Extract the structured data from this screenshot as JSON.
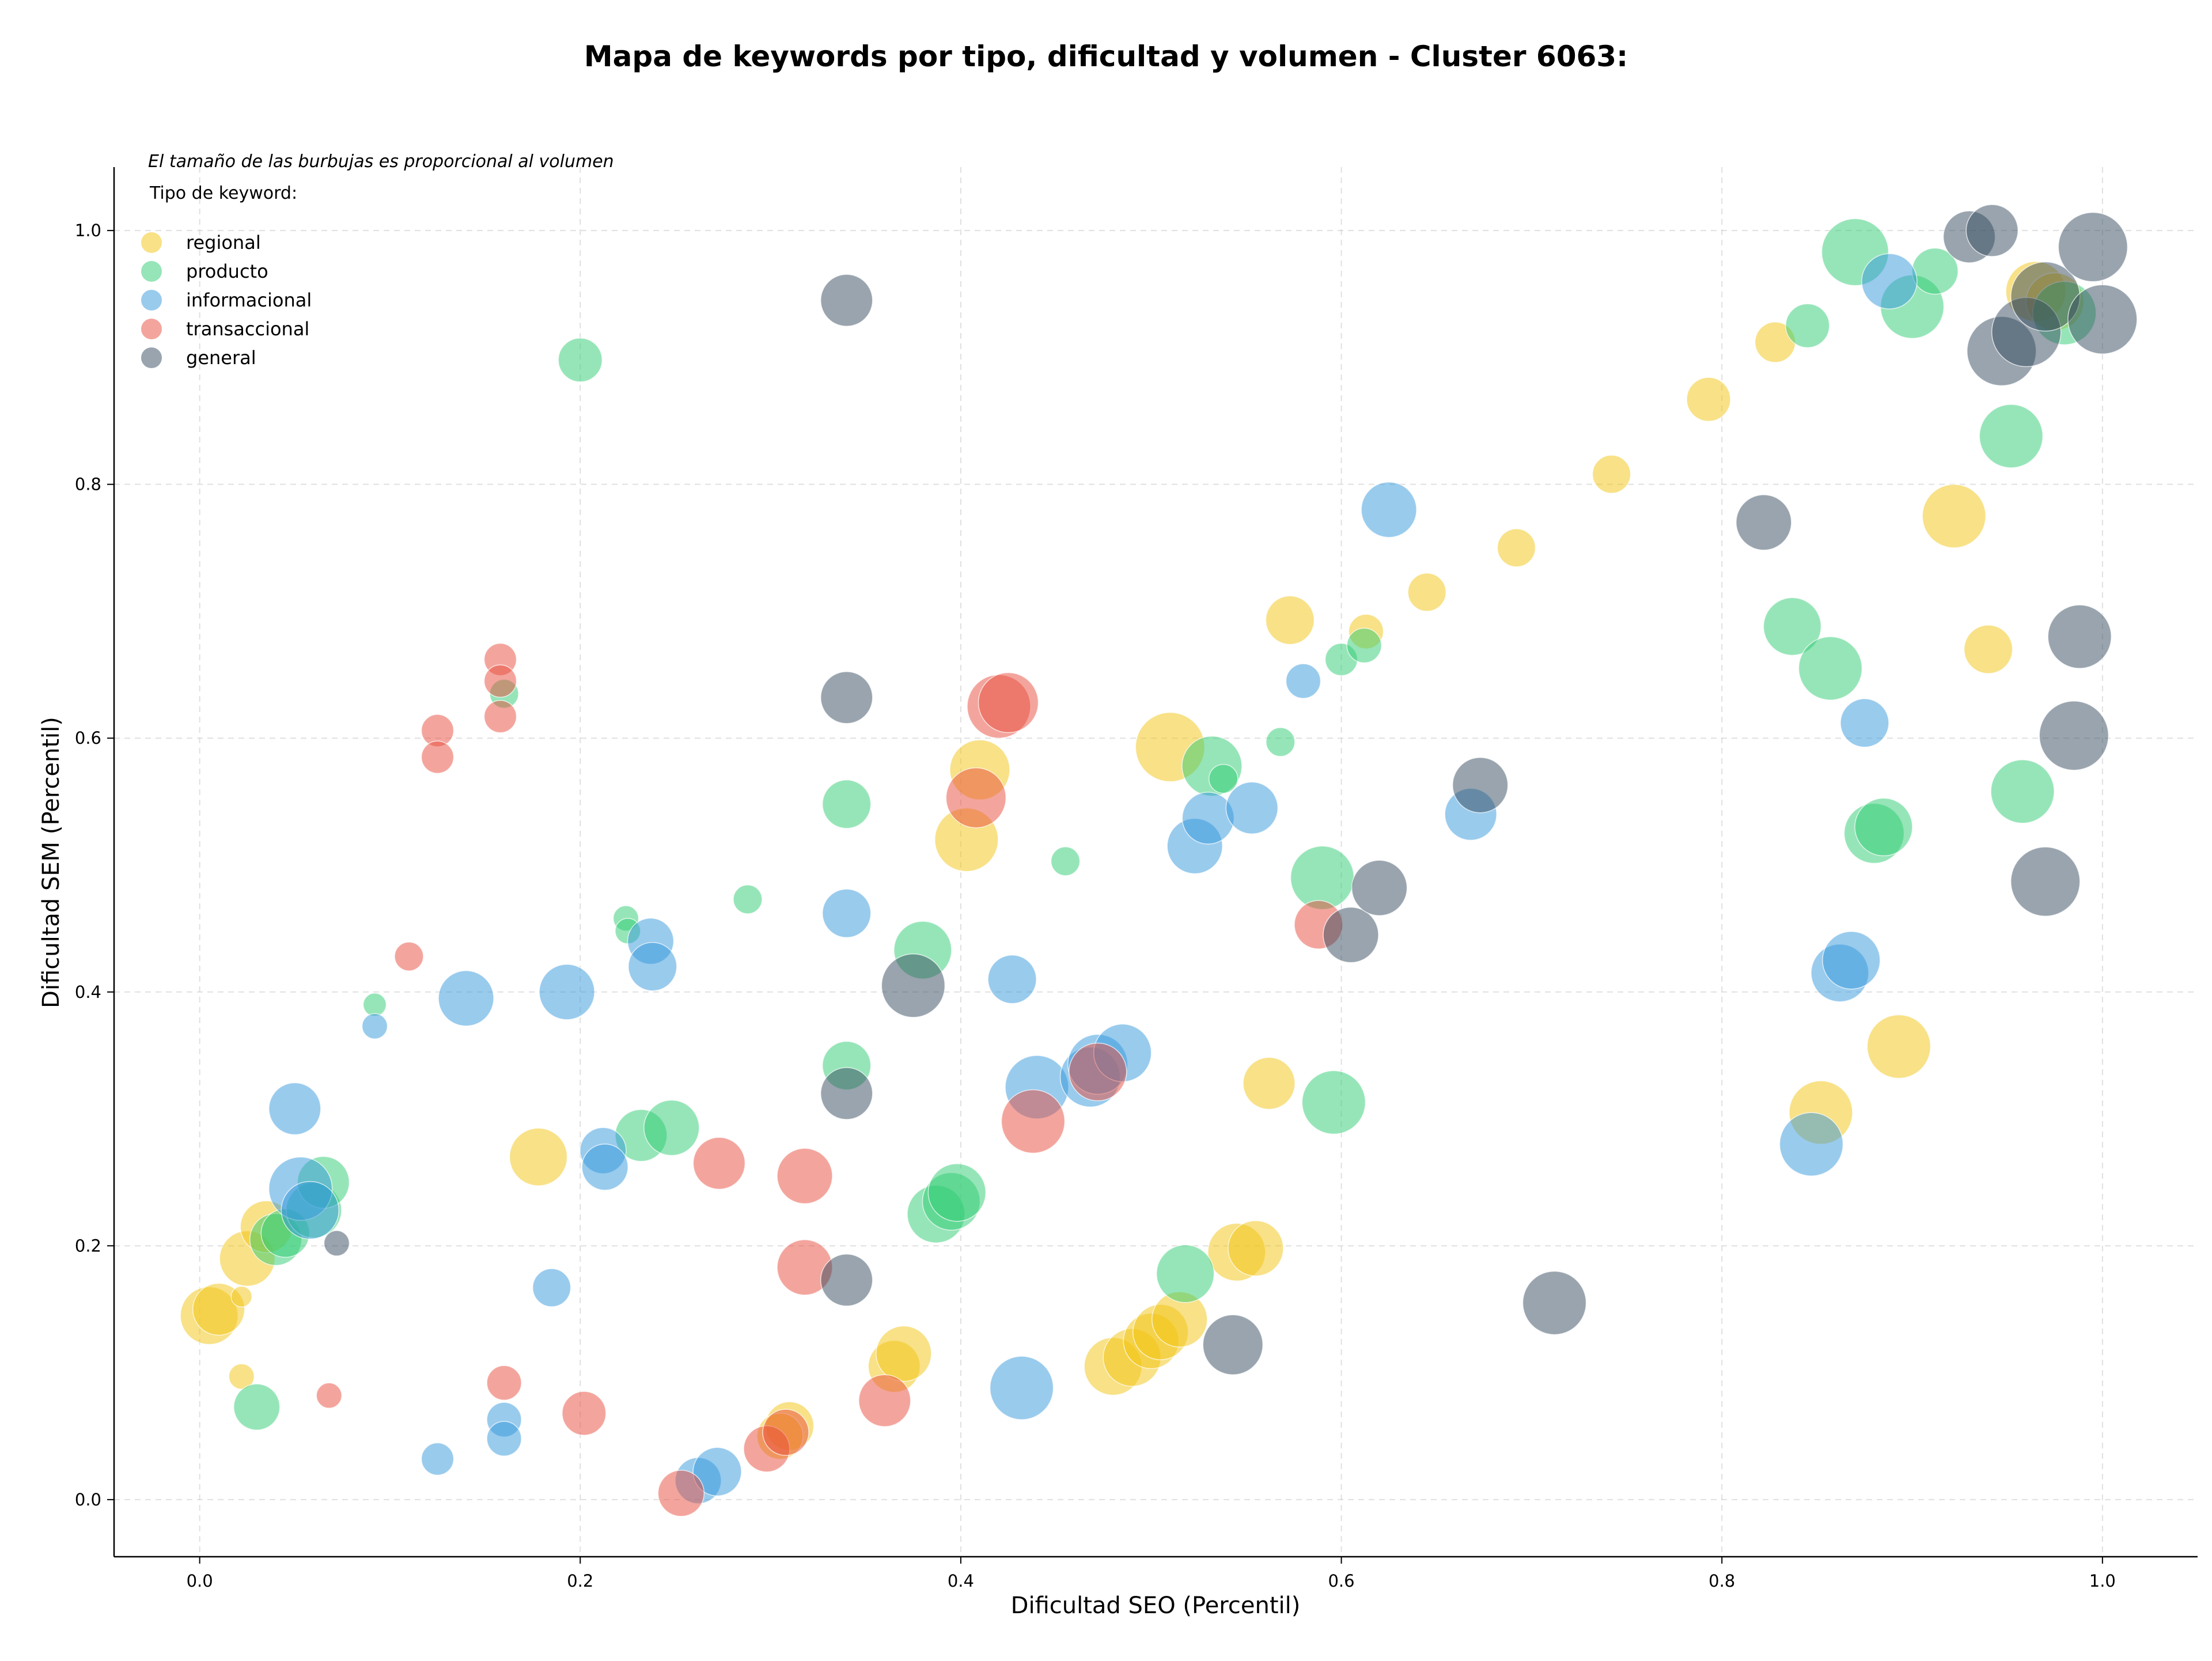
{
  "chart_data": {
    "type": "scatter",
    "title": "Mapa de keywords por tipo, dificultad y volumen - Cluster 6063:",
    "xlabel": "Dificultad SEO (Percentil)",
    "ylabel": "Dificultad SEM (Percentil)",
    "xlim": [
      -0.045,
      1.05
    ],
    "ylim": [
      -0.045,
      1.05
    ],
    "x_ticks": [
      "0.0",
      "0.2",
      "0.4",
      "0.6",
      "0.8",
      "1.0"
    ],
    "y_ticks": [
      "0.0",
      "0.2",
      "0.4",
      "0.6",
      "0.8",
      "1.0"
    ],
    "grid": true,
    "size_note": "El tamaño de las burbujas es proporcional al volumen",
    "legend_title": "Tipo de keyword:",
    "legend_position": "top-left",
    "series": [
      {
        "name": "regional",
        "color": "#f1c40f",
        "points": [
          [
            0.005,
            0.145,
            50
          ],
          [
            0.01,
            0.15,
            45
          ],
          [
            0.022,
            0.16,
            18
          ],
          [
            0.022,
            0.097,
            22
          ],
          [
            0.025,
            0.19,
            48
          ],
          [
            0.035,
            0.215,
            45
          ],
          [
            0.178,
            0.27,
            50
          ],
          [
            0.31,
            0.058,
            42
          ],
          [
            0.305,
            0.05,
            40
          ],
          [
            0.365,
            0.105,
            45
          ],
          [
            0.37,
            0.115,
            48
          ],
          [
            0.403,
            0.52,
            55
          ],
          [
            0.41,
            0.575,
            52
          ],
          [
            0.48,
            0.105,
            50
          ],
          [
            0.49,
            0.112,
            50
          ],
          [
            0.5,
            0.125,
            48
          ],
          [
            0.505,
            0.132,
            48
          ],
          [
            0.515,
            0.142,
            48
          ],
          [
            0.51,
            0.593,
            60
          ],
          [
            0.545,
            0.195,
            50
          ],
          [
            0.555,
            0.198,
            48
          ],
          [
            0.562,
            0.328,
            45
          ],
          [
            0.573,
            0.693,
            42
          ],
          [
            0.613,
            0.684,
            30
          ],
          [
            0.645,
            0.715,
            33
          ],
          [
            0.692,
            0.75,
            33
          ],
          [
            0.742,
            0.808,
            33
          ],
          [
            0.793,
            0.867,
            38
          ],
          [
            0.828,
            0.912,
            35
          ],
          [
            0.852,
            0.305,
            55
          ],
          [
            0.893,
            0.357,
            55
          ],
          [
            0.922,
            0.775,
            55
          ],
          [
            0.94,
            0.67,
            42
          ],
          [
            0.965,
            0.952,
            52
          ],
          [
            0.975,
            0.944,
            50
          ]
        ]
      },
      {
        "name": "producto",
        "color": "#2ecc71",
        "points": [
          [
            0.03,
            0.073,
            40
          ],
          [
            0.04,
            0.205,
            45
          ],
          [
            0.045,
            0.21,
            42
          ],
          [
            0.06,
            0.228,
            48
          ],
          [
            0.065,
            0.25,
            45
          ],
          [
            0.092,
            0.39,
            20
          ],
          [
            0.16,
            0.635,
            25
          ],
          [
            0.2,
            0.898,
            38
          ],
          [
            0.224,
            0.458,
            22
          ],
          [
            0.225,
            0.448,
            22
          ],
          [
            0.232,
            0.287,
            45
          ],
          [
            0.248,
            0.293,
            48
          ],
          [
            0.288,
            0.473,
            25
          ],
          [
            0.34,
            0.548,
            42
          ],
          [
            0.34,
            0.342,
            42
          ],
          [
            0.38,
            0.433,
            50
          ],
          [
            0.387,
            0.225,
            50
          ],
          [
            0.395,
            0.235,
            50
          ],
          [
            0.398,
            0.242,
            50
          ],
          [
            0.455,
            0.503,
            25
          ],
          [
            0.518,
            0.178,
            50
          ],
          [
            0.532,
            0.578,
            52
          ],
          [
            0.538,
            0.568,
            25
          ],
          [
            0.568,
            0.597,
            25
          ],
          [
            0.59,
            0.49,
            55
          ],
          [
            0.596,
            0.313,
            55
          ],
          [
            0.6,
            0.662,
            28
          ],
          [
            0.612,
            0.673,
            30
          ],
          [
            0.837,
            0.688,
            50
          ],
          [
            0.845,
            0.925,
            38
          ],
          [
            0.857,
            0.655,
            55
          ],
          [
            0.87,
            0.983,
            58
          ],
          [
            0.88,
            0.525,
            52
          ],
          [
            0.885,
            0.53,
            50
          ],
          [
            0.9,
            0.94,
            55
          ],
          [
            0.912,
            0.968,
            40
          ],
          [
            0.952,
            0.838,
            55
          ],
          [
            0.958,
            0.558,
            55
          ],
          [
            0.98,
            0.935,
            55
          ]
        ]
      },
      {
        "name": "informacional",
        "color": "#3498db",
        "points": [
          [
            0.05,
            0.308,
            45
          ],
          [
            0.053,
            0.245,
            55
          ],
          [
            0.058,
            0.228,
            50
          ],
          [
            0.092,
            0.373,
            22
          ],
          [
            0.125,
            0.032,
            28
          ],
          [
            0.14,
            0.395,
            48
          ],
          [
            0.16,
            0.063,
            30
          ],
          [
            0.16,
            0.048,
            30
          ],
          [
            0.185,
            0.167,
            33
          ],
          [
            0.193,
            0.4,
            48
          ],
          [
            0.212,
            0.275,
            40
          ],
          [
            0.213,
            0.262,
            40
          ],
          [
            0.237,
            0.44,
            40
          ],
          [
            0.238,
            0.42,
            42
          ],
          [
            0.262,
            0.015,
            40
          ],
          [
            0.272,
            0.022,
            42
          ],
          [
            0.34,
            0.462,
            42
          ],
          [
            0.427,
            0.41,
            42
          ],
          [
            0.432,
            0.088,
            55
          ],
          [
            0.44,
            0.325,
            55
          ],
          [
            0.468,
            0.333,
            52
          ],
          [
            0.472,
            0.343,
            52
          ],
          [
            0.485,
            0.352,
            50
          ],
          [
            0.523,
            0.515,
            48
          ],
          [
            0.53,
            0.537,
            45
          ],
          [
            0.553,
            0.545,
            45
          ],
          [
            0.58,
            0.645,
            30
          ],
          [
            0.625,
            0.78,
            48
          ],
          [
            0.668,
            0.54,
            45
          ],
          [
            0.847,
            0.28,
            55
          ],
          [
            0.862,
            0.415,
            50
          ],
          [
            0.868,
            0.425,
            50
          ],
          [
            0.875,
            0.612,
            42
          ],
          [
            0.888,
            0.96,
            48
          ]
        ]
      },
      {
        "name": "transaccional",
        "color": "#e74c3c",
        "points": [
          [
            0.068,
            0.082,
            22
          ],
          [
            0.11,
            0.428,
            25
          ],
          [
            0.125,
            0.606,
            28
          ],
          [
            0.125,
            0.585,
            28
          ],
          [
            0.158,
            0.662,
            28
          ],
          [
            0.158,
            0.645,
            28
          ],
          [
            0.158,
            0.617,
            28
          ],
          [
            0.16,
            0.092,
            30
          ],
          [
            0.202,
            0.068,
            38
          ],
          [
            0.253,
            0.005,
            40
          ],
          [
            0.273,
            0.265,
            45
          ],
          [
            0.298,
            0.04,
            40
          ],
          [
            0.308,
            0.053,
            40
          ],
          [
            0.318,
            0.255,
            48
          ],
          [
            0.318,
            0.183,
            48
          ],
          [
            0.36,
            0.078,
            45
          ],
          [
            0.408,
            0.553,
            52
          ],
          [
            0.42,
            0.625,
            55
          ],
          [
            0.425,
            0.628,
            52
          ],
          [
            0.438,
            0.298,
            55
          ],
          [
            0.472,
            0.337,
            50
          ],
          [
            0.588,
            0.453,
            42
          ]
        ]
      },
      {
        "name": "general",
        "color": "#34495e",
        "points": [
          [
            0.072,
            0.202,
            22
          ],
          [
            0.34,
            0.945,
            45
          ],
          [
            0.34,
            0.632,
            45
          ],
          [
            0.34,
            0.32,
            45
          ],
          [
            0.34,
            0.173,
            45
          ],
          [
            0.375,
            0.405,
            55
          ],
          [
            0.543,
            0.122,
            52
          ],
          [
            0.605,
            0.445,
            48
          ],
          [
            0.62,
            0.482,
            48
          ],
          [
            0.673,
            0.563,
            48
          ],
          [
            0.712,
            0.155,
            55
          ],
          [
            0.822,
            0.77,
            48
          ],
          [
            0.93,
            0.995,
            45
          ],
          [
            0.942,
            1.0,
            45
          ],
          [
            0.947,
            0.905,
            60
          ],
          [
            0.96,
            0.92,
            60
          ],
          [
            0.97,
            0.487,
            60
          ],
          [
            0.97,
            0.948,
            60
          ],
          [
            0.985,
            0.602,
            60
          ],
          [
            0.988,
            0.68,
            55
          ],
          [
            0.995,
            0.987,
            60
          ],
          [
            1.0,
            0.93,
            60
          ]
        ]
      }
    ]
  }
}
